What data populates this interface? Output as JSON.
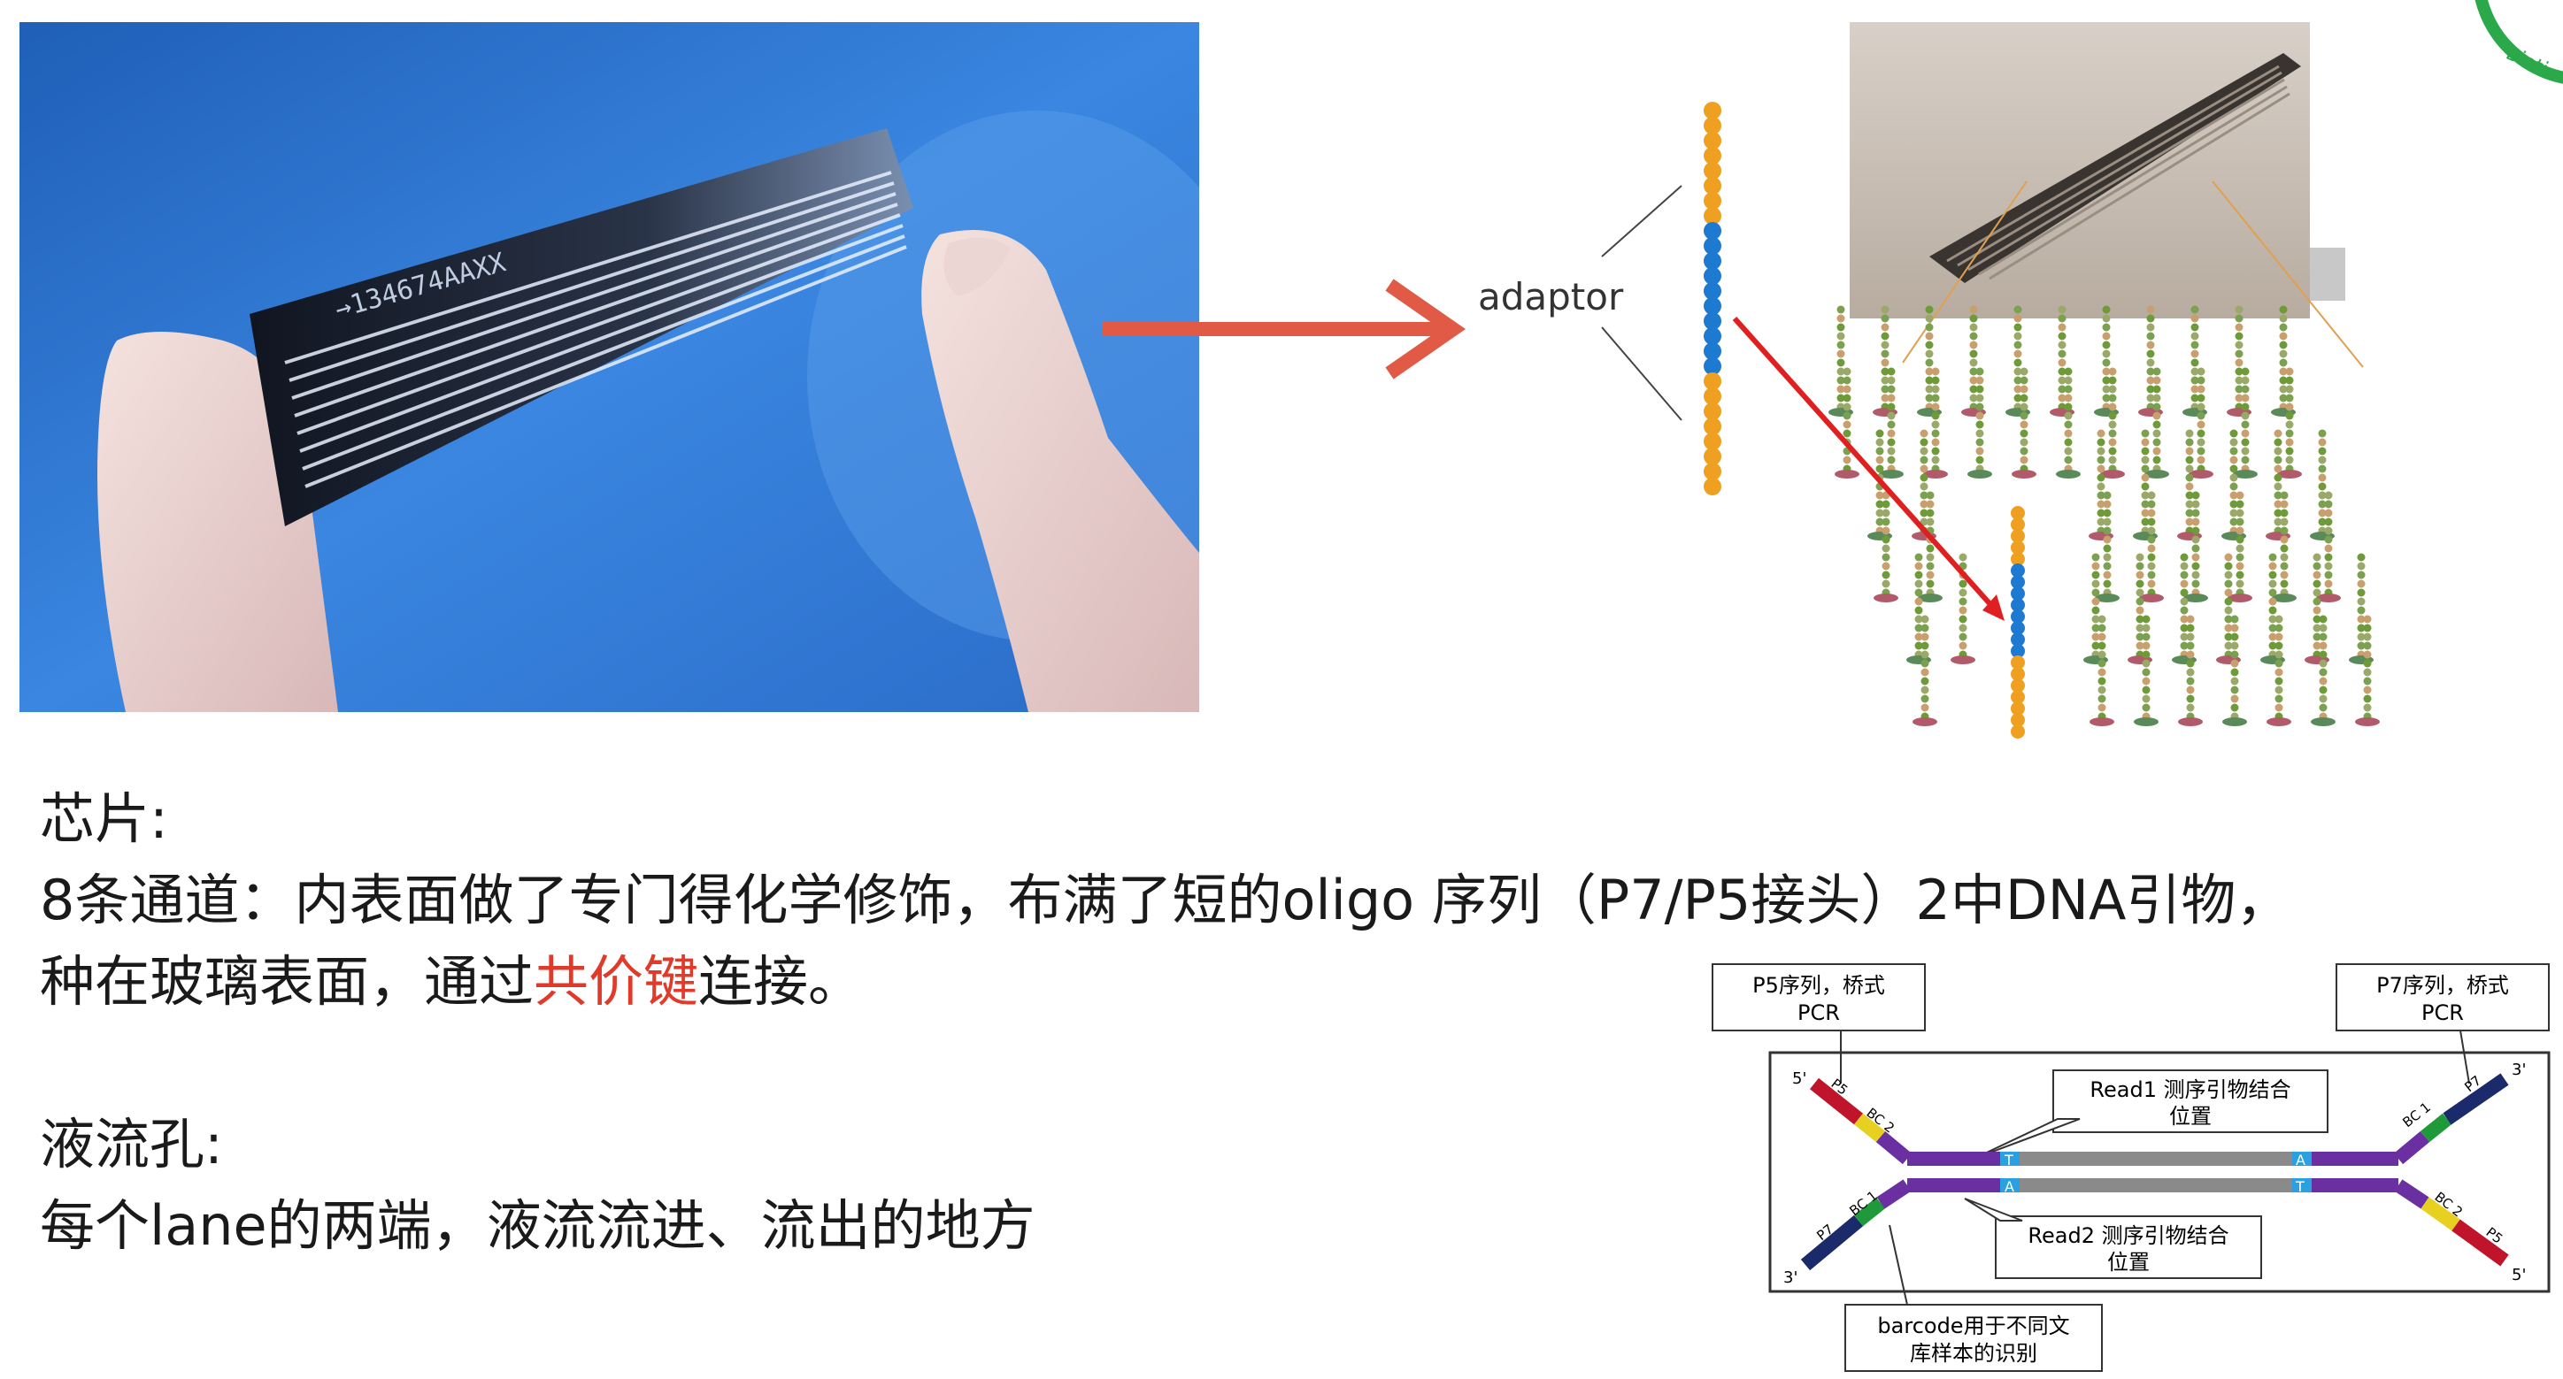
{
  "photo": {
    "chip_print": "→134674AAXX"
  },
  "figure": {
    "adaptor_label": "adaptor"
  },
  "text": {
    "heading1": "芯片:",
    "line1": "8条通道：内表面做了专门得化学修饰，布满了短的oligo 序列（P7/P5接头）2中DNA引物，",
    "line2_pre": "种在玻璃表面，通过",
    "line2_red": "共价键",
    "line2_post": "连接。",
    "heading2": "液流孔:",
    "line3": "每个lane的两端，液流流进、流出的地方"
  },
  "schematic": {
    "p5_box_line1": "P5序列，桥式",
    "p5_box_line2": "PCR",
    "p7_box_line1": "P7序列，桥式",
    "p7_box_line2": "PCR",
    "read1_line1": "Read1 测序引物结合",
    "read1_line2": "位置",
    "read2_line1": "Read2 测序引物结合",
    "read2_line2": "位置",
    "barcode_line1": "barcode用于不同文",
    "barcode_line2": "库样本的识别",
    "five_prime": "5'",
    "three_prime": "3'",
    "p5": "P5",
    "p7": "P7",
    "bc1": "BC 1",
    "bc2": "BC 2",
    "t": "T",
    "a": "A"
  },
  "logo": {
    "text": "Bioti"
  },
  "colors": {
    "accent_red": "#e03a2a",
    "adaptor_orange": "#f0a020",
    "adaptor_blue": "#1e7ad0",
    "strand_purple": "#6a2fa0",
    "p5_red": "#c0142a",
    "p7_navy": "#1a2a6a",
    "bc_yellow": "#e8d020",
    "bc_green": "#1f9a3a",
    "logo_green": "#2aa84a"
  }
}
